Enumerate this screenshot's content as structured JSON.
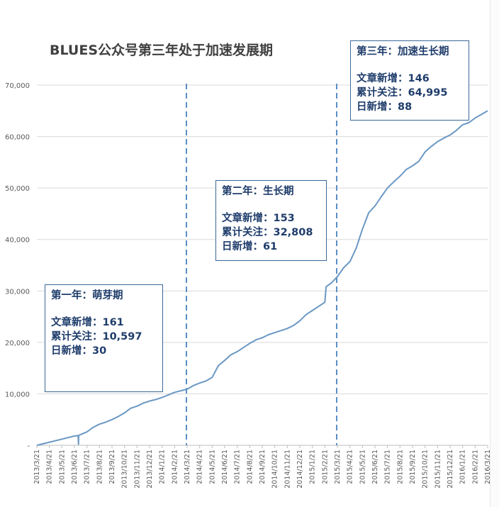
{
  "title": "BLUES公众号第三年处于加速发展期",
  "colors": {
    "line": "#6a98c4",
    "divider": "#5b8ec4",
    "grid": "#d9d9d9",
    "box_border": "#3a6796",
    "box_text": "#1f3d6b"
  },
  "phases": [
    {
      "head": "第一年：萌芽期",
      "articles": "文章新增：161",
      "followers": "累计关注：10,597",
      "daily": "日新增：30"
    },
    {
      "head": "第二年：生长期",
      "articles": "文章新增：153",
      "followers": "累计关注：32,808",
      "daily": "日新增：61"
    },
    {
      "head": "第三年：加速生长期",
      "articles": "文章新增：146",
      "followers": "累计关注：64,995",
      "daily": "日新增：88"
    }
  ],
  "chart_data": {
    "type": "line",
    "title": "BLUES公众号第三年处于加速发展期",
    "xlabel": "",
    "ylabel": "",
    "ylim": [
      0,
      70000
    ],
    "y_ticks": [
      0,
      10000,
      20000,
      30000,
      40000,
      50000,
      60000,
      70000
    ],
    "y_tick_labels": [
      "-",
      "10,000",
      "20,000",
      "30,000",
      "40,000",
      "50,000",
      "60,000",
      "70,000"
    ],
    "x_tick_labels": [
      "2013/3/21",
      "2013/4/21",
      "2013/5/21",
      "2013/6/21",
      "2013/7/21",
      "2013/8/21",
      "2013/9/21",
      "2013/10/21",
      "2013/11/21",
      "2013/12/21",
      "2014/1/21",
      "2014/2/21",
      "2014/3/21",
      "2014/4/21",
      "2014/5/21",
      "2014/6/21",
      "2014/7/21",
      "2014/8/21",
      "2014/9/21",
      "2014/10/21",
      "2014/11/21",
      "2014/12/21",
      "2015/1/21",
      "2015/2/21",
      "2015/3/21",
      "2015/4/21",
      "2015/5/21",
      "2015/6/21",
      "2015/7/21",
      "2015/8/21",
      "2015/9/21",
      "2015/10/21",
      "2015/11/21",
      "2015/12/21",
      "2016/1/21",
      "2016/2/21",
      "2016/3/21"
    ],
    "dividers": [
      "2014/3/21",
      "2015/3/21"
    ],
    "series": [
      {
        "name": "累计关注",
        "x": [
          0,
          1,
          2,
          3,
          3.3,
          3.32,
          3.34,
          3.4,
          3.5,
          4,
          4.5,
          5,
          5.5,
          6,
          6.5,
          7,
          7.5,
          8,
          8.5,
          9,
          9.5,
          10,
          10.5,
          11,
          11.5,
          12,
          12.5,
          13,
          13.5,
          14,
          14.5,
          15,
          15.5,
          16,
          16.5,
          17,
          17.5,
          18,
          18.5,
          19,
          19.5,
          20,
          20.5,
          21,
          21.5,
          22,
          22.5,
          23,
          23.1,
          23.2,
          23.5,
          24,
          24.5,
          25,
          25.5,
          26,
          26.5,
          27,
          27.5,
          28,
          28.5,
          29,
          29.5,
          30,
          30.5,
          31,
          31.5,
          32,
          32.5,
          33,
          33.5,
          34,
          34.5,
          35,
          35.5,
          36
        ],
        "values": [
          0,
          600,
          1200,
          1800,
          1900,
          200,
          1900,
          2000,
          2100,
          2600,
          3500,
          4100,
          4500,
          5000,
          5600,
          6300,
          7200,
          7600,
          8200,
          8600,
          8900,
          9300,
          9800,
          10300,
          10600,
          10900,
          11600,
          12100,
          12500,
          13200,
          15500,
          16500,
          17600,
          18200,
          19000,
          19800,
          20500,
          20900,
          21500,
          21900,
          22300,
          22700,
          23300,
          24200,
          25400,
          26200,
          27000,
          27800,
          30800,
          31000,
          31500,
          32800,
          34500,
          35700,
          38300,
          42000,
          45200,
          46500,
          48300,
          50000,
          51200,
          52300,
          53600,
          54300,
          55200,
          57000,
          58100,
          59000,
          59700,
          60300,
          61200,
          62300,
          62700,
          63600,
          64300,
          64995
        ]
      }
    ]
  }
}
